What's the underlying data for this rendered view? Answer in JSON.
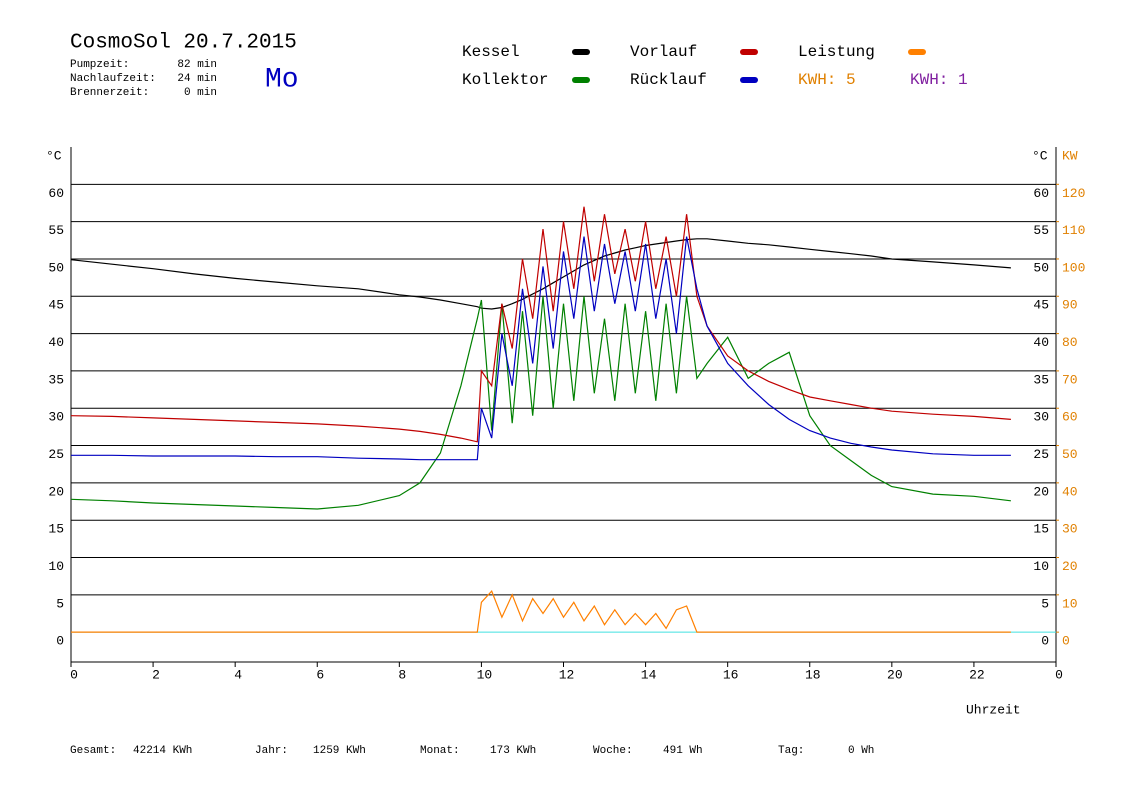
{
  "header": {
    "title": "CosmoSol 20.7.2015",
    "day": "Mo",
    "stats": [
      [
        "Pumpzeit:",
        "82 min"
      ],
      [
        "Nachlaufzeit:",
        "24 min"
      ],
      [
        "Brennerzeit:",
        "0 min"
      ]
    ]
  },
  "footer": [
    [
      "Gesamt:",
      "42214 KWh"
    ],
    [
      "Jahr:",
      "1259 KWh"
    ],
    [
      "Monat:",
      "173 KWh"
    ],
    [
      "Woche:",
      "491 Wh"
    ],
    [
      "Tag:",
      "0 Wh"
    ]
  ],
  "chart_data": {
    "type": "line",
    "x_label": "Uhrzeit",
    "y_label": "°C",
    "y_label_right": "°C",
    "y2_label": "KW",
    "kwh_labels": [
      {
        "text": "KWH: 5",
        "color": "#e08000"
      },
      {
        "text": "KWH: 1",
        "color": "#8020a0"
      }
    ],
    "xlim": [
      0,
      24
    ],
    "xticks": [
      0,
      2,
      4,
      6,
      8,
      10,
      12,
      14,
      16,
      18,
      20,
      22,
      {
        "value": 24,
        "label": "0"
      }
    ],
    "ylim": [
      -4,
      65
    ],
    "yticks": [
      0,
      5,
      10,
      15,
      20,
      25,
      30,
      35,
      40,
      45,
      50,
      55,
      60
    ],
    "y2lim": [
      -8,
      130
    ],
    "y2ticks": [
      0,
      10,
      20,
      30,
      40,
      50,
      60,
      70,
      80,
      90,
      100,
      110,
      120
    ],
    "grid": true,
    "x": [
      0,
      1,
      2,
      3,
      4,
      5,
      6,
      7,
      8,
      8.5,
      9,
      9.5,
      9.9,
      10,
      10.25,
      10.5,
      10.75,
      11,
      11.25,
      11.5,
      11.75,
      12,
      12.25,
      12.5,
      12.75,
      13,
      13.25,
      13.5,
      13.75,
      14,
      14.25,
      14.5,
      14.75,
      15,
      15.25,
      15.5,
      16,
      16.5,
      17,
      17.5,
      18,
      18.5,
      19,
      19.5,
      20,
      21,
      22,
      22.9
    ],
    "series": [
      {
        "name": "Kessel",
        "color": "#000000",
        "values": [
          49.9,
          49.3,
          48.7,
          48,
          47.4,
          46.9,
          46.4,
          46,
          45.2,
          44.9,
          44.5,
          44,
          43.6,
          43.4,
          43.3,
          43.5,
          44,
          44.6,
          45.3,
          46,
          46.8,
          47.6,
          48.4,
          49.2,
          49.8,
          50.4,
          50.8,
          51.2,
          51.5,
          51.8,
          52,
          52.2,
          52.4,
          52.6,
          52.7,
          52.7,
          52.4,
          52.1,
          51.9,
          51.6,
          51.3,
          51,
          50.7,
          50.4,
          50,
          49.6,
          49.2,
          48.8
        ]
      },
      {
        "name": "Kollektor",
        "color": "#008000",
        "values": [
          17.8,
          17.6,
          17.3,
          17.1,
          16.9,
          16.7,
          16.5,
          17,
          18.3,
          20,
          24,
          33,
          42,
          44.5,
          27,
          44,
          28,
          43,
          29,
          45,
          30,
          44,
          31,
          45,
          32,
          42,
          31,
          44,
          32,
          43,
          31,
          44,
          32,
          45,
          34,
          36,
          39.5,
          34,
          36,
          37.5,
          29,
          25,
          23,
          21,
          19.5,
          18.5,
          18.2,
          17.6
        ]
      },
      {
        "name": "Vorlauf",
        "color": "#c00000",
        "values": [
          29,
          28.9,
          28.7,
          28.5,
          28.3,
          28.1,
          27.9,
          27.6,
          27.2,
          26.9,
          26.5,
          26,
          25.5,
          35,
          33,
          44,
          38,
          50,
          42,
          54,
          43,
          55,
          46,
          57,
          47,
          56,
          48,
          54,
          47,
          55,
          46,
          53,
          45,
          56,
          45,
          41,
          37,
          35,
          33.6,
          32.5,
          31.5,
          31,
          30.5,
          30,
          29.6,
          29.2,
          28.9,
          28.5
        ]
      },
      {
        "name": "Rücklauf",
        "color": "#0000c0",
        "values": [
          23.7,
          23.7,
          23.6,
          23.6,
          23.6,
          23.5,
          23.5,
          23.3,
          23.2,
          23.1,
          23.1,
          23.1,
          23.1,
          30,
          26,
          40,
          33,
          46,
          36,
          49,
          38,
          51,
          42,
          53,
          43,
          52,
          44,
          51,
          43,
          52,
          42,
          50,
          40,
          53,
          46,
          41,
          36,
          33,
          30.5,
          28.5,
          27,
          26,
          25.3,
          24.8,
          24.4,
          23.9,
          23.7,
          23.7
        ]
      },
      {
        "name": "Leistung",
        "color": "#ff8000",
        "axis": "y2",
        "values": [
          0,
          0,
          0,
          0,
          0,
          0,
          0,
          0,
          0,
          0,
          0,
          0,
          0,
          8,
          11,
          4,
          10,
          3,
          9,
          5,
          9,
          4,
          8,
          3,
          7,
          2,
          6,
          2,
          5,
          2,
          5,
          1,
          6,
          7,
          0,
          0,
          0,
          0,
          0,
          0,
          0,
          0,
          0,
          0,
          0,
          0,
          0,
          0
        ]
      }
    ]
  }
}
